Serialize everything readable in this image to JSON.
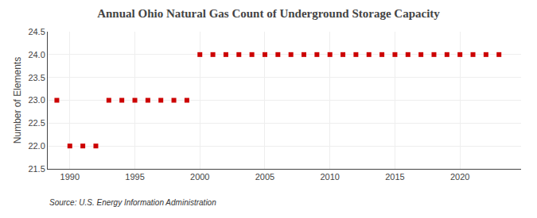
{
  "chart_data": {
    "type": "scatter",
    "title": "Annual Ohio Natural Gas Count of Underground Storage Capacity",
    "ylabel": "Number of Elements",
    "source": "Source: U.S. Energy Information Administration",
    "x": [
      1989,
      1990,
      1991,
      1992,
      1993,
      1994,
      1995,
      1996,
      1997,
      1998,
      1999,
      2000,
      2001,
      2002,
      2003,
      2004,
      2005,
      2006,
      2007,
      2008,
      2009,
      2010,
      2011,
      2012,
      2013,
      2014,
      2015,
      2016,
      2017,
      2018,
      2019,
      2020,
      2021,
      2022,
      2023
    ],
    "values": [
      23,
      22,
      22,
      22,
      23,
      23,
      23,
      23,
      23,
      23,
      23,
      24,
      24,
      24,
      24,
      24,
      24,
      24,
      24,
      24,
      24,
      24,
      24,
      24,
      24,
      24,
      24,
      24,
      24,
      24,
      24,
      24,
      24,
      24,
      24
    ],
    "color": "#cc0000",
    "marker": "square",
    "line_style": "none",
    "xlim": [
      1988.3,
      2024.7
    ],
    "xticks": [
      1990,
      1995,
      2000,
      2005,
      2010,
      2015,
      2020
    ],
    "ylim": [
      21.5,
      24.5
    ],
    "yticks": [
      21.5,
      {
        "value": 22.0,
        "label": "22.0"
      },
      22.5,
      {
        "value": 23.0,
        "label": "23.0"
      },
      23.5,
      {
        "value": 24.0,
        "label": "24.0"
      },
      24.5
    ],
    "grid": true
  }
}
